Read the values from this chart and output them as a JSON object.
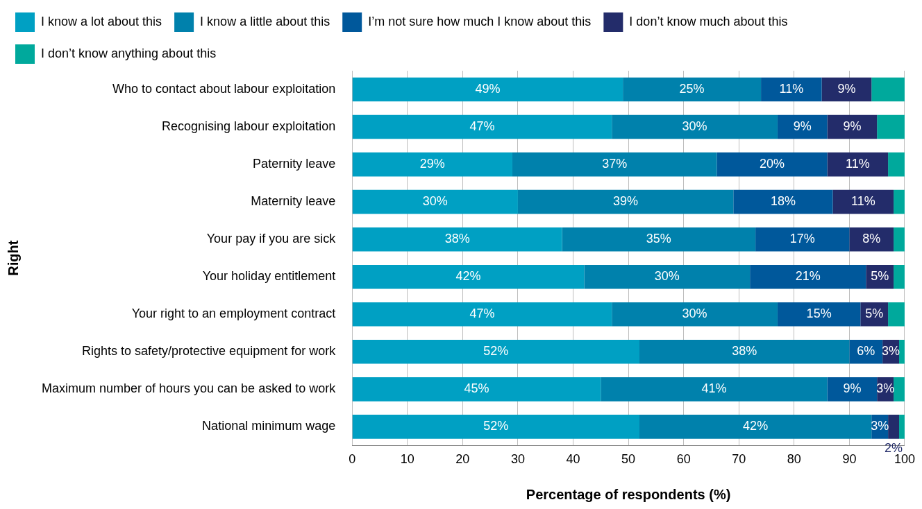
{
  "chart_data": {
    "type": "bar",
    "orientation": "horizontal",
    "stacked": true,
    "ylabel": "Right",
    "xlabel": "Percentage of respondents (%)",
    "categories": [
      "Who to contact about labour exploitation",
      "Recognising labour exploitation",
      "Paternity leave",
      "Maternity leave",
      "Your pay if you are sick",
      "Your holiday entitlement",
      "Your right to an employment contract",
      "Rights to safety/protective equipment for work",
      "Maximum number of hours you can be asked to work",
      "National minimum wage"
    ],
    "series": [
      {
        "name": "I know a lot about this",
        "color": "#00a0c3",
        "values": [
          49,
          47,
          29,
          30,
          38,
          42,
          47,
          52,
          45,
          52
        ],
        "value_labels": [
          "49%",
          "47%",
          "29%",
          "30%",
          "38%",
          "42%",
          "47%",
          "52%",
          "45%",
          "52%"
        ]
      },
      {
        "name": "I know a little about this",
        "color": "#0081ac",
        "values": [
          25,
          30,
          37,
          39,
          35,
          30,
          30,
          38,
          41,
          42
        ],
        "value_labels": [
          "25%",
          "30%",
          "37%",
          "39%",
          "35%",
          "30%",
          "30%",
          "38%",
          "41%",
          "42%"
        ]
      },
      {
        "name": "I’m not sure how much I know about this",
        "color": "#00589b",
        "values": [
          11,
          9,
          20,
          18,
          17,
          21,
          15,
          6,
          9,
          3
        ],
        "value_labels": [
          "11%",
          "9%",
          "20%",
          "18%",
          "17%",
          "21%",
          "15%",
          "6%",
          "9%",
          "3%"
        ]
      },
      {
        "name": "I don’t know much about this",
        "color": "#232c6a",
        "values": [
          9,
          9,
          11,
          11,
          8,
          5,
          5,
          3,
          3,
          2
        ],
        "value_labels": [
          "9%",
          "9%",
          "11%",
          "11%",
          "8%",
          "5%",
          "5%",
          "3%",
          "3%",
          "2%"
        ]
      },
      {
        "name": "I don’t know anything about this",
        "color": "#00a99c",
        "values": [
          6,
          5,
          3,
          2,
          2,
          2,
          3,
          1,
          2,
          1
        ]
      }
    ],
    "xlim": [
      0,
      100
    ],
    "xticks": [
      0,
      10,
      20,
      30,
      40,
      50,
      60,
      70,
      80,
      90,
      100
    ],
    "grid": "x",
    "legend": "top"
  }
}
